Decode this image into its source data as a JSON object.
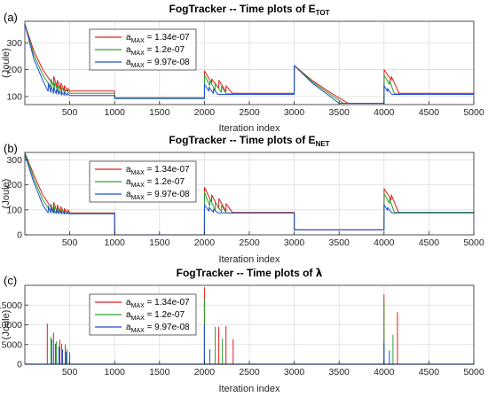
{
  "figure": {
    "panels": [
      {
        "label": "(a)",
        "title_main": "FogTracker -- Time plots of E",
        "title_sub": "TOT",
        "title_symbol": "",
        "ylabel": "(Joule)",
        "xlabel": "Iteration index"
      },
      {
        "label": "(b)",
        "title_main": "FogTracker -- Time plots of E",
        "title_sub": "NET",
        "title_symbol": "",
        "ylabel": "(Joule)",
        "xlabel": "Iteration index"
      },
      {
        "label": "(c)",
        "title_main": "FogTracker -- Time plots of ",
        "title_sub": "",
        "title_symbol": "λ",
        "ylabel": "(Joule)",
        "xlabel": "Iteration index"
      }
    ],
    "legend": [
      {
        "prefix": "a",
        "sub": "MAX",
        "suffix": " = 1.34e-07",
        "color": "#e41a1c"
      },
      {
        "prefix": "a",
        "sub": "MAX",
        "suffix": " = 1.2e-07",
        "color": "#2ca02c"
      },
      {
        "prefix": "a",
        "sub": "MAX",
        "suffix": " = 9.97e-08",
        "color": "#1f4fd1"
      }
    ]
  },
  "chart_data": [
    {
      "type": "line",
      "title": "FogTracker -- Time plots of E_TOT",
      "xlabel": "Iteration index",
      "ylabel": "(Joule)",
      "xlim": [
        0,
        5000
      ],
      "ylim": [
        70,
        380
      ],
      "xticks": [
        500,
        1000,
        1500,
        2000,
        2500,
        3000,
        3500,
        4000,
        4500,
        5000
      ],
      "yticks": [
        100,
        200,
        300
      ],
      "grid": true,
      "legend_position": "top-left",
      "series": [
        {
          "name": "a_MAX = 1.34e-07",
          "color": "#e41a1c",
          "x": [
            0,
            100,
            200,
            300,
            320,
            321,
            360,
            361,
            400,
            401,
            440,
            441,
            480,
            481,
            500,
            1000,
            1001,
            2000,
            2001,
            2080,
            2081,
            2160,
            2161,
            2240,
            2241,
            2310,
            2320,
            3000,
            3001,
            3200,
            3400,
            3600,
            4000,
            4001,
            4080,
            4081,
            4150,
            4160,
            4170,
            5000
          ],
          "y": [
            370,
            270,
            200,
            150,
            143,
            175,
            135,
            160,
            128,
            150,
            122,
            140,
            118,
            130,
            120,
            120,
            95,
            95,
            195,
            150,
            165,
            130,
            160,
            118,
            140,
            112,
            112,
            112,
            215,
            160,
            115,
            75,
            75,
            200,
            160,
            175,
            125,
            115,
            112,
            112
          ]
        },
        {
          "name": "a_MAX = 1.2e-07",
          "color": "#2ca02c",
          "x": [
            0,
            100,
            200,
            280,
            290,
            291,
            330,
            331,
            370,
            371,
            410,
            411,
            450,
            451,
            500,
            1000,
            1001,
            2000,
            2001,
            2060,
            2061,
            2120,
            2121,
            2190,
            2191,
            2240,
            2250,
            3000,
            3001,
            3200,
            3400,
            3550,
            4000,
            4001,
            4060,
            4061,
            4110,
            4120,
            5000
          ],
          "y": [
            370,
            255,
            180,
            140,
            135,
            165,
            125,
            150,
            120,
            140,
            116,
            132,
            112,
            125,
            112,
            112,
            95,
            95,
            180,
            140,
            160,
            122,
            150,
            115,
            138,
            110,
            110,
            110,
            215,
            155,
            108,
            75,
            75,
            180,
            145,
            160,
            115,
            110,
            110
          ]
        },
        {
          "name": "a_MAX = 9.97e-08",
          "color": "#1f4fd1",
          "x": [
            0,
            100,
            200,
            250,
            260,
            261,
            290,
            291,
            320,
            321,
            350,
            351,
            380,
            381,
            410,
            411,
            440,
            441,
            470,
            471,
            500,
            1000,
            1001,
            2000,
            2001,
            2050,
            2051,
            2100,
            2101,
            2150,
            2160,
            3000,
            3001,
            3200,
            3400,
            3500,
            4000,
            4001,
            4040,
            4041,
            4080,
            4090,
            5000
          ],
          "y": [
            370,
            240,
            160,
            125,
            120,
            150,
            115,
            140,
            112,
            132,
            110,
            126,
            108,
            122,
            106,
            118,
            105,
            115,
            104,
            112,
            104,
            104,
            92,
            92,
            145,
            120,
            135,
            112,
            128,
            108,
            108,
            108,
            215,
            150,
            100,
            75,
            75,
            140,
            118,
            130,
            110,
            108,
            108
          ]
        }
      ]
    },
    {
      "type": "line",
      "title": "FogTracker -- Time plots of E_NET",
      "xlabel": "Iteration index",
      "ylabel": "(Joule)",
      "xlim": [
        0,
        5000
      ],
      "ylim": [
        0,
        330
      ],
      "xticks": [
        500,
        1000,
        1500,
        2000,
        2500,
        3000,
        3500,
        4000,
        4500,
        5000
      ],
      "yticks": [
        0,
        100,
        200,
        300
      ],
      "grid": true,
      "legend_position": "top-left",
      "series": [
        {
          "name": "a_MAX = 1.34e-07",
          "color": "#e41a1c",
          "x": [
            0,
            100,
            200,
            300,
            320,
            321,
            360,
            361,
            400,
            401,
            440,
            441,
            480,
            481,
            500,
            1000,
            1001,
            2000,
            2001,
            2080,
            2081,
            2160,
            2161,
            2240,
            2241,
            2310,
            2320,
            3000,
            3001,
            4000,
            4001,
            4080,
            4081,
            4150,
            4160,
            4170,
            5000
          ],
          "y": [
            330,
            240,
            160,
            105,
            95,
            130,
            92,
            120,
            90,
            112,
            88,
            105,
            86,
            100,
            88,
            88,
            0,
            0,
            190,
            130,
            160,
            105,
            145,
            95,
            125,
            90,
            90,
            90,
            20,
            20,
            185,
            140,
            160,
            100,
            92,
            90,
            90
          ]
        },
        {
          "name": "a_MAX = 1.2e-07",
          "color": "#2ca02c",
          "x": [
            0,
            100,
            200,
            280,
            290,
            291,
            330,
            331,
            370,
            371,
            410,
            411,
            450,
            451,
            500,
            1000,
            1001,
            2000,
            2001,
            2060,
            2061,
            2120,
            2121,
            2190,
            2191,
            2240,
            2250,
            3000,
            3001,
            4000,
            4001,
            4060,
            4061,
            4110,
            4120,
            5000
          ],
          "y": [
            330,
            225,
            140,
            98,
            92,
            122,
            90,
            112,
            88,
            105,
            86,
            100,
            85,
            96,
            86,
            86,
            0,
            0,
            170,
            115,
            145,
            98,
            130,
            92,
            118,
            88,
            88,
            88,
            20,
            20,
            165,
            125,
            145,
            95,
            90,
            90
          ]
        },
        {
          "name": "a_MAX = 9.97e-08",
          "color": "#1f4fd1",
          "x": [
            0,
            100,
            200,
            250,
            260,
            261,
            290,
            291,
            320,
            321,
            350,
            351,
            380,
            381,
            410,
            411,
            440,
            441,
            470,
            471,
            500,
            1000,
            1001,
            2000,
            2001,
            2050,
            2051,
            2100,
            2101,
            2150,
            2160,
            3000,
            3001,
            4000,
            4001,
            4040,
            4041,
            4080,
            4090,
            5000
          ],
          "y": [
            320,
            210,
            120,
            92,
            88,
            115,
            87,
            108,
            86,
            102,
            85,
            98,
            85,
            95,
            84,
            92,
            84,
            90,
            84,
            88,
            84,
            84,
            0,
            0,
            120,
            95,
            110,
            90,
            102,
            88,
            88,
            88,
            20,
            20,
            120,
            98,
            110,
            90,
            88,
            88
          ]
        }
      ]
    },
    {
      "type": "line",
      "title": "FogTracker -- Time plots of λ",
      "xlabel": "Iteration index",
      "ylabel": "(Joule)",
      "xlim": [
        0,
        5000
      ],
      "ylim": [
        0,
        20000
      ],
      "xticks": [
        500,
        1000,
        1500,
        2000,
        2500,
        3000,
        3500,
        4000,
        4500,
        5000
      ],
      "yticks": [
        0,
        5000,
        10000,
        15000
      ],
      "grid": true,
      "legend_position": "top-left",
      "spike_series": [
        {
          "name": "a_MAX = 1.34e-07",
          "color": "#e41a1c",
          "x": [
            250,
            320,
            390,
            450,
            2000,
            2160,
            2240,
            2320,
            4000,
            4150
          ],
          "y": [
            10300,
            8000,
            6200,
            5000,
            19500,
            9500,
            9700,
            6300,
            17700,
            13200
          ]
        },
        {
          "name": "a_MAX = 1.2e-07",
          "color": "#2ca02c",
          "x": [
            290,
            350,
            410,
            470,
            2000,
            2120,
            2200,
            4000,
            4100
          ],
          "y": [
            7000,
            5800,
            5200,
            3800,
            16500,
            9500,
            6500,
            15700,
            7500
          ]
        },
        {
          "name": "a_MAX = 9.97e-08",
          "color": "#1f4fd1",
          "x": [
            300,
            340,
            380,
            420,
            460,
            500,
            2000,
            2060,
            4000,
            4060
          ],
          "y": [
            6300,
            5200,
            4500,
            3800,
            3200,
            3000,
            10000,
            3800,
            5500,
            3500
          ]
        }
      ]
    }
  ]
}
